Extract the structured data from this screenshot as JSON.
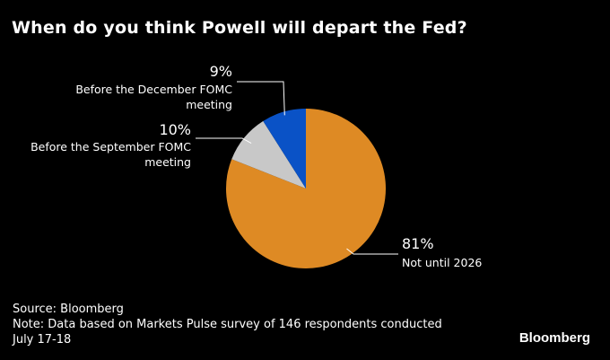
{
  "title": "When do you think Powell will depart the Fed?",
  "chart_data": {
    "type": "pie",
    "start": "12 o'clock",
    "direction": "clockwise",
    "slices": [
      {
        "label": "Not until 2026",
        "value": 81,
        "value_label": "81%",
        "color": "#de8a24"
      },
      {
        "label": "Before the September FOMC meeting",
        "label_lines": [
          "Before the September FOMC",
          "meeting"
        ],
        "value": 10,
        "value_label": "10%",
        "color": "#c8c8c8"
      },
      {
        "label": "Before the December FOMC meeting",
        "label_lines": [
          "Before the December FOMC",
          "meeting"
        ],
        "value": 9,
        "value_label": "9%",
        "color": "#0a52c6"
      }
    ]
  },
  "footer": {
    "source": "Source: Bloomberg",
    "note_line1": "Note: Data based on Markets Pulse survey of 146 respondents conducted",
    "note_line2": "July 17-18"
  },
  "brand": "Bloomberg"
}
